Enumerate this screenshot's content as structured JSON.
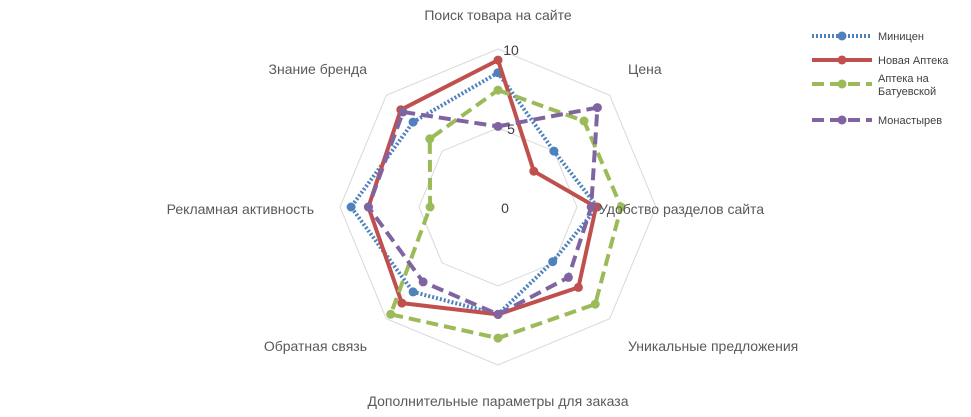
{
  "chart_data": {
    "type": "radar",
    "axes": [
      "Поиск товара на сайте",
      "Цена",
      "Удобство разделов сайта",
      "Уникальные предложения",
      "Дополнительные параметры для заказа",
      "Обратная связь",
      "Рекламная активность",
      "Знание бренда"
    ],
    "ticks": [
      "0",
      "5",
      "10"
    ],
    "rlim": [
      0,
      10
    ],
    "grid": true,
    "legend_position": "top-right",
    "series": [
      {
        "name": "Миницен",
        "color": "#4F81BD",
        "dash": "dotted",
        "values": [
          8.5,
          5.0,
          6.3,
          4.9,
          6.8,
          7.6,
          9.3,
          7.6
        ]
      },
      {
        "name": "Новая Аптека",
        "color": "#C0504D",
        "dash": "solid",
        "values": [
          9.3,
          3.2,
          6.2,
          7.2,
          6.8,
          8.6,
          8.2,
          8.7
        ]
      },
      {
        "name": "Аптека на Батуевской",
        "color": "#9BBB59",
        "dash": "dashed",
        "values": [
          7.4,
          7.7,
          7.8,
          8.7,
          8.3,
          9.6,
          4.3,
          6.1
        ]
      },
      {
        "name": "Монастырев",
        "color": "#8064A2",
        "dash": "dashed",
        "values": [
          5.1,
          8.9,
          5.9,
          6.3,
          6.8,
          6.7,
          8.2,
          8.5
        ]
      }
    ]
  }
}
